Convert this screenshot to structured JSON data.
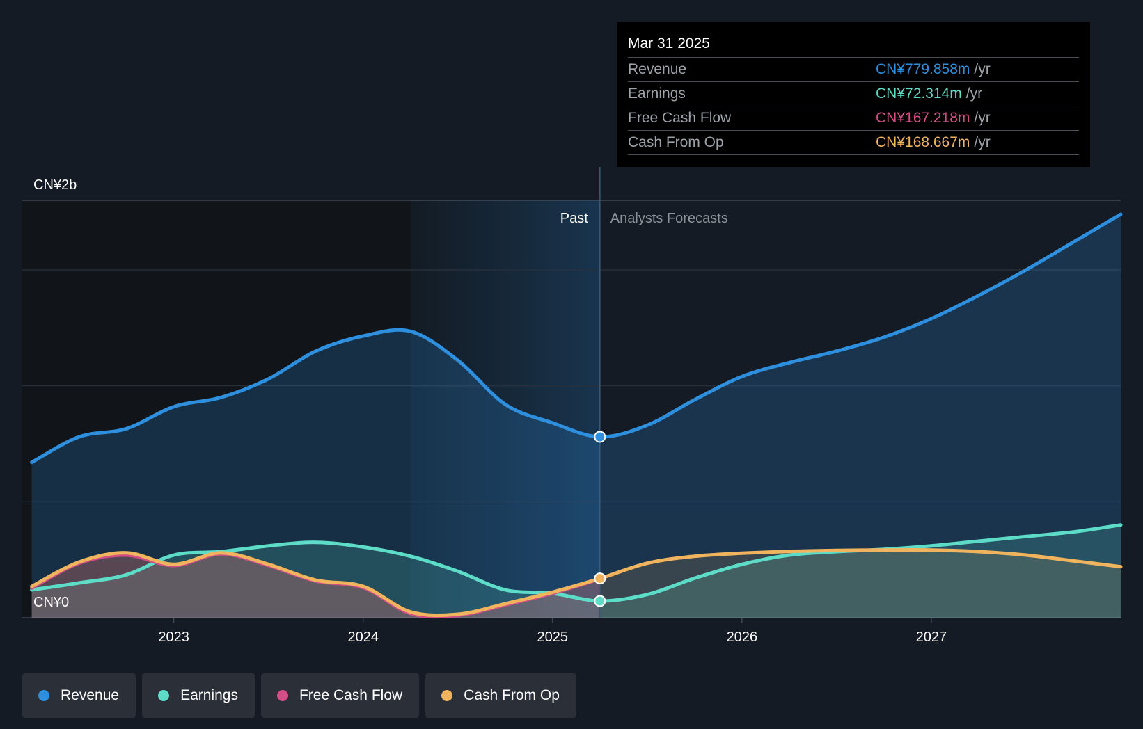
{
  "chart_data": {
    "type": "area",
    "y_top_label": "CN¥2b",
    "y_bottom_label": "CN¥0",
    "ylim": [
      0,
      1800
    ],
    "xlim": [
      2022.2,
      2028.0
    ],
    "x_ticks": [
      {
        "value": 2023,
        "label": "2023"
      },
      {
        "value": 2024,
        "label": "2024"
      },
      {
        "value": 2025,
        "label": "2025"
      },
      {
        "value": 2026,
        "label": "2026"
      },
      {
        "value": 2027,
        "label": "2027"
      }
    ],
    "past_label": "Past",
    "forecast_label": "Analysts Forecasts",
    "divider_x": 2025.25,
    "shade_start_x": 2024.25,
    "series": [
      {
        "name": "Revenue",
        "color": "#2d8fdd",
        "x": [
          2022.25,
          2022.5,
          2022.75,
          2023.0,
          2023.25,
          2023.5,
          2023.75,
          2024.0,
          2024.25,
          2024.5,
          2024.75,
          2025.0,
          2025.25,
          2025.5,
          2025.75,
          2026.0,
          2026.25,
          2026.5,
          2026.75,
          2027.0,
          2027.25,
          2027.5,
          2027.75,
          2028.0
        ],
        "values": [
          670,
          780,
          815,
          910,
          950,
          1030,
          1150,
          1215,
          1235,
          1110,
          920,
          840,
          780,
          830,
          940,
          1040,
          1100,
          1150,
          1210,
          1290,
          1390,
          1500,
          1620,
          1740
        ]
      },
      {
        "name": "Earnings",
        "color": "#5ddcc8",
        "x": [
          2022.25,
          2022.5,
          2022.75,
          2023.0,
          2023.25,
          2023.5,
          2023.75,
          2024.0,
          2024.25,
          2024.5,
          2024.75,
          2025.0,
          2025.25,
          2025.5,
          2025.75,
          2026.0,
          2026.25,
          2026.5,
          2026.75,
          2027.0,
          2027.25,
          2027.5,
          2027.75,
          2028.0
        ],
        "values": [
          120,
          150,
          185,
          270,
          285,
          310,
          325,
          305,
          265,
          200,
          120,
          105,
          72,
          100,
          170,
          230,
          270,
          285,
          295,
          310,
          330,
          350,
          370,
          400
        ]
      },
      {
        "name": "Free Cash Flow",
        "color": "#d14f86",
        "x": [
          2022.25,
          2022.5,
          2022.75,
          2023.0,
          2023.25,
          2023.5,
          2023.75,
          2024.0,
          2024.25,
          2024.5,
          2024.75,
          2025.0,
          2025.25
        ],
        "values": [
          128,
          235,
          270,
          225,
          275,
          225,
          158,
          130,
          18,
          10,
          55,
          105,
          167
        ]
      },
      {
        "name": "Cash From Op",
        "color": "#f0b45f",
        "x": [
          2022.25,
          2022.5,
          2022.75,
          2023.0,
          2023.25,
          2023.5,
          2023.75,
          2024.0,
          2024.25,
          2024.5,
          2024.75,
          2025.0,
          2025.25,
          2025.5,
          2025.75,
          2026.0,
          2026.25,
          2026.5,
          2026.75,
          2027.0,
          2027.25,
          2027.5,
          2027.75,
          2028.0
        ],
        "values": [
          135,
          240,
          280,
          230,
          280,
          230,
          162,
          135,
          25,
          15,
          60,
          110,
          169,
          235,
          265,
          278,
          286,
          290,
          292,
          292,
          285,
          270,
          245,
          220
        ]
      }
    ],
    "tooltip": {
      "date": "Mar 31 2025",
      "rows": [
        {
          "name": "Revenue",
          "value": "CN¥779.858m",
          "unit": "/yr",
          "color": "#2d8fdd"
        },
        {
          "name": "Earnings",
          "value": "CN¥72.314m",
          "unit": "/yr",
          "color": "#5ddcc8"
        },
        {
          "name": "Free Cash Flow",
          "value": "CN¥167.218m",
          "unit": "/yr",
          "color": "#d14f86"
        },
        {
          "name": "Cash From Op",
          "value": "CN¥168.667m",
          "unit": "/yr",
          "color": "#f0b45f"
        }
      ]
    }
  },
  "legend": [
    {
      "label": "Revenue",
      "color": "#2d8fdd"
    },
    {
      "label": "Earnings",
      "color": "#5ddcc8"
    },
    {
      "label": "Free Cash Flow",
      "color": "#d14f86"
    },
    {
      "label": "Cash From Op",
      "color": "#f0b45f"
    }
  ]
}
